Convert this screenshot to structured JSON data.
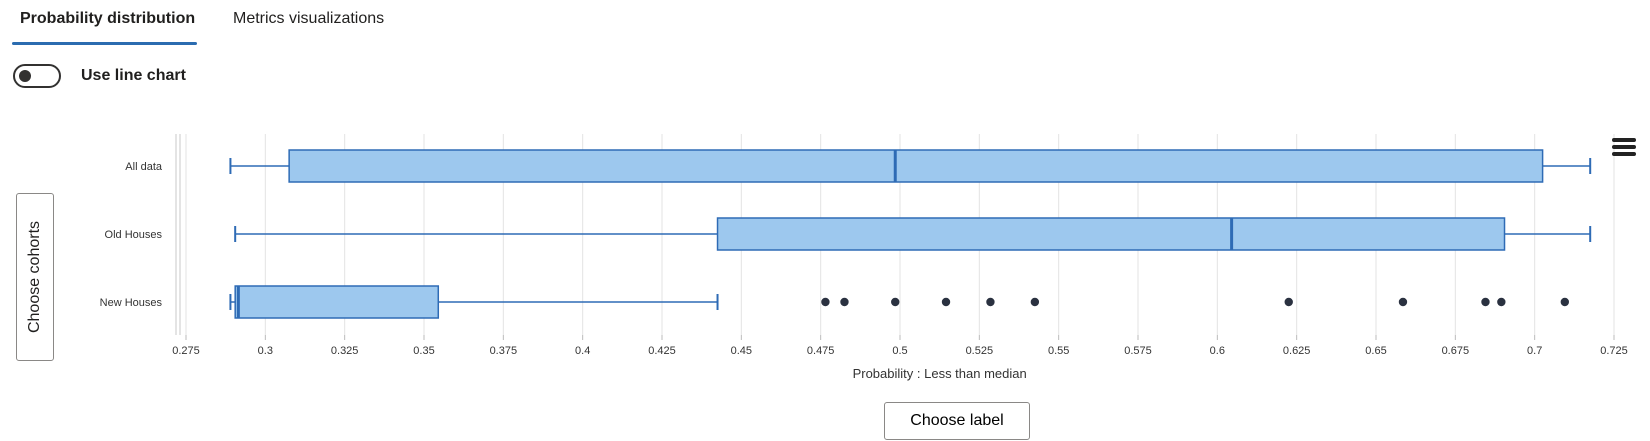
{
  "tabs": [
    {
      "label": "Probability distribution",
      "active": true
    },
    {
      "label": "Metrics visualizations",
      "active": false
    }
  ],
  "toggle": {
    "label": "Use line chart",
    "on": false
  },
  "cohorts_button": {
    "label": "Choose cohorts"
  },
  "label_button": {
    "label": "Choose label"
  },
  "menu_icon": "hamburger-menu-icon",
  "colors": {
    "box_fill": "#9dc8ee",
    "box_stroke": "#2e6bb5",
    "outlier": "#2a3140",
    "tab_accent": "#2b6cb0"
  },
  "chart_data": {
    "type": "boxplot",
    "orientation": "horizontal",
    "xlabel": "Probability : Less than median",
    "xlim": [
      0.265,
      0.735
    ],
    "xticks": [
      0.275,
      0.3,
      0.325,
      0.35,
      0.375,
      0.4,
      0.425,
      0.45,
      0.475,
      0.5,
      0.525,
      0.55,
      0.575,
      0.6,
      0.625,
      0.65,
      0.675,
      0.7,
      0.725
    ],
    "xtick_labels": [
      "0.275",
      "0.3",
      "0.325",
      "0.35",
      "0.375",
      "0.4",
      "0.425",
      "0.45",
      "0.475",
      "0.5",
      "0.525",
      "0.55",
      "0.575",
      "0.6",
      "0.625",
      "0.65",
      "0.675",
      "0.7",
      "0.725"
    ],
    "grid": true,
    "categories": [
      "All data",
      "Old Houses",
      "New Houses"
    ],
    "series": [
      {
        "category": "All data",
        "min": 0.289,
        "q1": 0.3075,
        "median": 0.4985,
        "q3": 0.7025,
        "max": 0.7175,
        "outliers": []
      },
      {
        "category": "Old Houses",
        "min": 0.2905,
        "q1": 0.4425,
        "median": 0.6045,
        "q3": 0.6905,
        "max": 0.7175,
        "outliers": []
      },
      {
        "category": "New Houses",
        "min": 0.289,
        "q1": 0.2905,
        "median": 0.2915,
        "q3": 0.3545,
        "max": 0.4425,
        "outliers": [
          0.4765,
          0.4825,
          0.4985,
          0.5145,
          0.5285,
          0.5425,
          0.6225,
          0.6585,
          0.6845,
          0.6895,
          0.7095
        ]
      }
    ]
  }
}
